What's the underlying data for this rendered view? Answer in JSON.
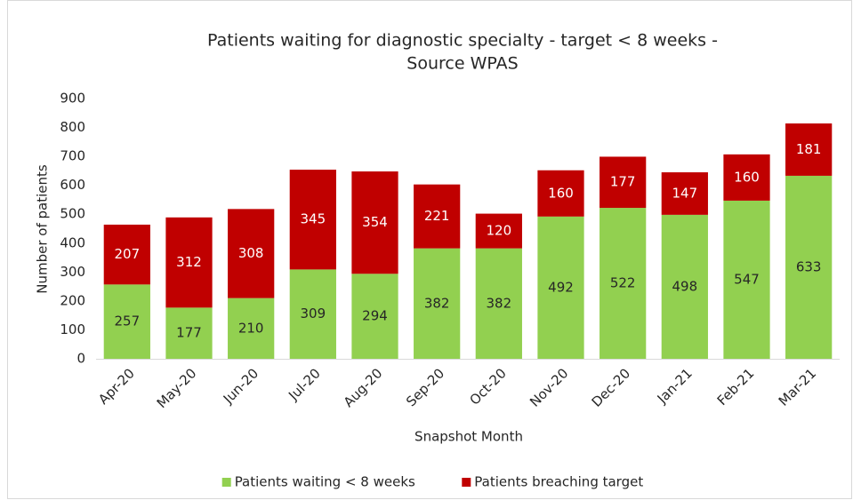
{
  "chart_data": {
    "type": "stacked_bar",
    "title": [
      "Patients waiting for diagnostic specialty - target < 8 weeks -",
      "Source WPAS"
    ],
    "x_label": "Snapshot Month",
    "y_label": "Number of patients",
    "categories": [
      "Apr-20",
      "May-20",
      "Jun-20",
      "Jul-20",
      "Aug-20",
      "Sep-20",
      "Oct-20",
      "Nov-20",
      "Dec-20",
      "Jan-21",
      "Feb-21",
      "Mar-21"
    ],
    "series": [
      {
        "name": "Patients waiting < 8 weeks",
        "color": "#92d050",
        "values": [
          257,
          177,
          210,
          309,
          294,
          382,
          382,
          492,
          522,
          498,
          547,
          633
        ]
      },
      {
        "name": "Patients breaching target",
        "color": "#c00000",
        "values": [
          207,
          312,
          308,
          345,
          354,
          221,
          120,
          160,
          177,
          147,
          160,
          181
        ]
      }
    ],
    "ylim": [
      0,
      900
    ],
    "yticks": [
      0,
      100,
      200,
      300,
      400,
      500,
      600,
      700,
      800,
      900
    ],
    "grid": false,
    "legend": "bottom"
  }
}
